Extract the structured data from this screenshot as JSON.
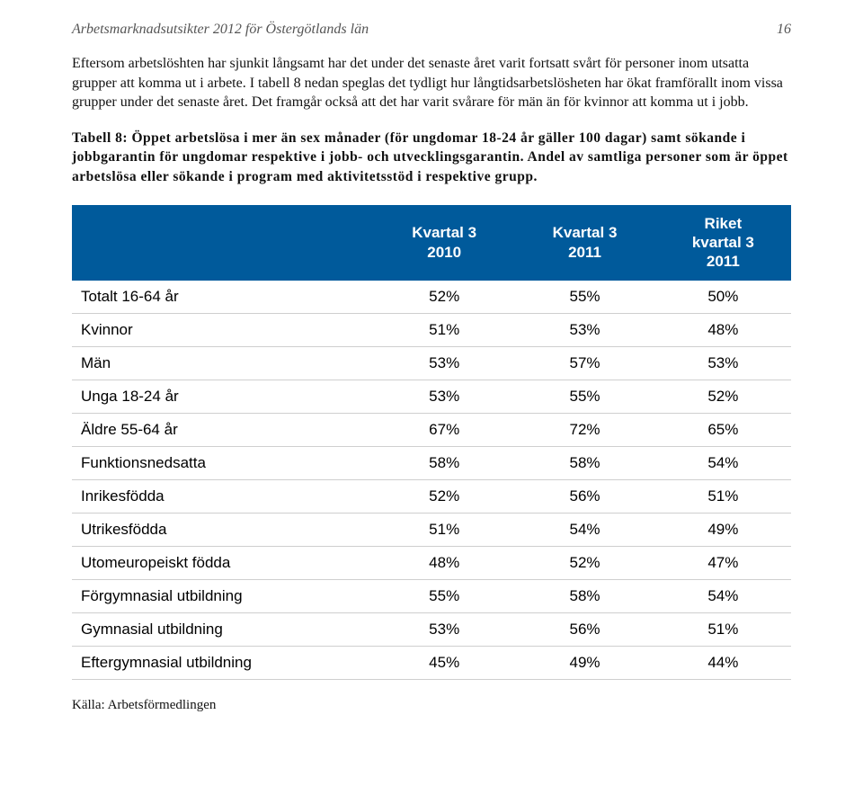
{
  "header": {
    "title": "Arbetsmarknadsutsikter 2012 för Östergötlands län",
    "page_number": "16"
  },
  "paragraph": "Eftersom arbetslöshten har sjunkit långsamt har det under det senaste året varit fortsatt svårt för personer inom utsatta grupper att komma ut i arbete. I tabell 8 nedan speglas det tydligt hur långtidsarbetslösheten har ökat framförallt inom vissa grupper under det senaste året. Det framgår också att det har varit svårare för män än för kvinnor att komma ut i jobb.",
  "caption": "Tabell 8: Öppet arbetslösa i mer än sex månader (för ungdomar 18-24 år gäller 100 dagar) samt sökande i jobbgarantin för ungdomar respektive i jobb- och utvecklingsgarantin. Andel av samtliga personer som är öppet arbetslösa eller sökande i program med aktivitetsstöd i respektive grupp.",
  "table": {
    "columns": [
      "",
      "Kvartal 3\n2010",
      "Kvartal 3\n2011",
      "Riket\nkvartal 3\n2011"
    ],
    "rows": [
      {
        "label": "Totalt 16-64 år",
        "c1": "52%",
        "c2": "55%",
        "c3": "50%"
      },
      {
        "label": "Kvinnor",
        "c1": "51%",
        "c2": "53%",
        "c3": "48%"
      },
      {
        "label": "Män",
        "c1": "53%",
        "c2": "57%",
        "c3": "53%"
      },
      {
        "label": "Unga 18-24 år",
        "c1": "53%",
        "c2": "55%",
        "c3": "52%"
      },
      {
        "label": "Äldre 55-64 år",
        "c1": "67%",
        "c2": "72%",
        "c3": "65%"
      },
      {
        "label": "Funktionsnedsatta",
        "c1": "58%",
        "c2": "58%",
        "c3": "54%"
      },
      {
        "label": "Inrikesfödda",
        "c1": "52%",
        "c2": "56%",
        "c3": "51%"
      },
      {
        "label": "Utrikesfödda",
        "c1": "51%",
        "c2": "54%",
        "c3": "49%"
      },
      {
        "label": "Utomeuropeiskt födda",
        "c1": "48%",
        "c2": "52%",
        "c3": "47%"
      },
      {
        "label": "Förgymnasial utbildning",
        "c1": "55%",
        "c2": "58%",
        "c3": "54%"
      },
      {
        "label": "Gymnasial utbildning",
        "c1": "53%",
        "c2": "56%",
        "c3": "51%"
      },
      {
        "label": "Eftergymnasial utbildning",
        "c1": "45%",
        "c2": "49%",
        "c3": "44%"
      }
    ],
    "header_bg": "#005a9b",
    "header_fg": "#ffffff",
    "row_border": "#cfcfcf"
  },
  "source": "Källa: Arbetsförmedlingen"
}
